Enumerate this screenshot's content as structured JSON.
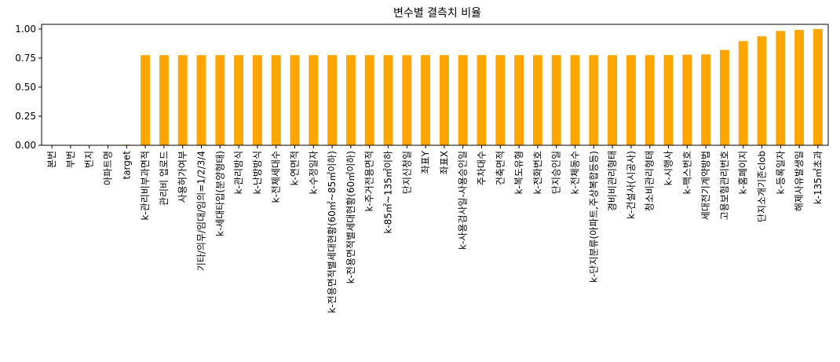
{
  "chart_data": {
    "type": "bar",
    "title": "변수별 결측치 비율",
    "xlabel": "",
    "ylabel": "",
    "ylim": [
      0,
      1.04
    ],
    "yticks": [
      "0.00",
      "0.25",
      "0.50",
      "0.75",
      "1.00"
    ],
    "ytick_values": [
      0,
      0.25,
      0.5,
      0.75,
      1.0
    ],
    "grid": false,
    "bar_color": "#ffa500",
    "categories": [
      "본번",
      "부번",
      "번지",
      "아파트명",
      "target",
      "k-관리비부과면적",
      "관리비 업로드",
      "사용허가여부",
      "기타/의무/임대/임의=1/2/3/4",
      "k-세대타입(분양형태)",
      "k-관리방식",
      "k-난방방식",
      "k-전체세대수",
      "k-연면적",
      "k-수정일자",
      "k-전용면적별세대현황(60㎡~85㎡이하)",
      "k-전용면적별세대현황(60㎡이하)",
      "k-주거전용면적",
      "k-85㎡~135㎡이하",
      "단지신청일",
      "좌표Y",
      "좌표X",
      "k-사용검사일-사용승인일",
      "주차대수",
      "건축면적",
      "k-복도유형",
      "k-전화번호",
      "단지승인일",
      "k-전체동수",
      "k-단지분류(아파트,주상복합등등)",
      "경비비관리형태",
      "k-건설사(시공사)",
      "청소비관리형태",
      "k-시행사",
      "k-팩스번호",
      "세대전기계약방법",
      "고용보험관리번호",
      "k-홈페이지",
      "단지소개기존clob",
      "k-등록일자",
      "해제사유발생일",
      "k-135㎡초과"
    ],
    "values": [
      0.0,
      0.0,
      0.0,
      0.002,
      0.005,
      0.775,
      0.775,
      0.775,
      0.775,
      0.775,
      0.775,
      0.775,
      0.775,
      0.775,
      0.775,
      0.775,
      0.775,
      0.775,
      0.775,
      0.775,
      0.775,
      0.775,
      0.775,
      0.775,
      0.775,
      0.775,
      0.775,
      0.775,
      0.775,
      0.775,
      0.775,
      0.775,
      0.775,
      0.776,
      0.779,
      0.781,
      0.82,
      0.896,
      0.937,
      0.983,
      0.992,
      0.9995
    ]
  }
}
